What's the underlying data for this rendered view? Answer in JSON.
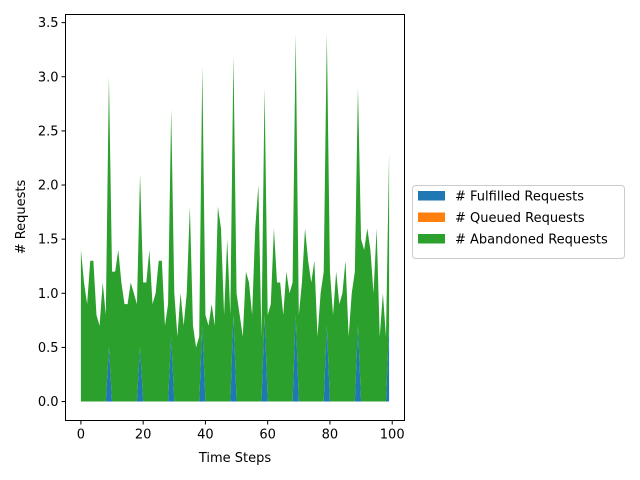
{
  "chart_data": {
    "type": "area",
    "xlabel": "Time Steps",
    "ylabel": "# Requests",
    "xlim": [
      -4.95,
      103.95
    ],
    "ylim": [
      -0.175,
      3.575
    ],
    "xticks": [
      0,
      20,
      40,
      60,
      80,
      100
    ],
    "xtick_labels": [
      "0",
      "20",
      "40",
      "60",
      "80",
      "100"
    ],
    "yticks": [
      0.0,
      0.5,
      1.0,
      1.5,
      2.0,
      2.5,
      3.0,
      3.5
    ],
    "ytick_labels": [
      "0.0",
      "0.5",
      "1.0",
      "1.5",
      "2.0",
      "2.5",
      "3.0",
      "3.5"
    ],
    "grid": false,
    "legend_position": "center-left-outside",
    "x": [
      0,
      1,
      2,
      3,
      4,
      5,
      6,
      7,
      8,
      9,
      10,
      11,
      12,
      13,
      14,
      15,
      16,
      17,
      18,
      19,
      20,
      21,
      22,
      23,
      24,
      25,
      26,
      27,
      28,
      29,
      30,
      31,
      32,
      33,
      34,
      35,
      36,
      37,
      38,
      39,
      40,
      41,
      42,
      43,
      44,
      45,
      46,
      47,
      48,
      49,
      50,
      51,
      52,
      53,
      54,
      55,
      56,
      57,
      58,
      59,
      60,
      61,
      62,
      63,
      64,
      65,
      66,
      67,
      68,
      69,
      70,
      71,
      72,
      73,
      74,
      75,
      76,
      77,
      78,
      79,
      80,
      81,
      82,
      83,
      84,
      85,
      86,
      87,
      88,
      89,
      90,
      91,
      92,
      93,
      94,
      95,
      96,
      97,
      98,
      99
    ],
    "series": [
      {
        "name": "# Fulfilled Requests",
        "color": "#1f77b4",
        "values": [
          0,
          0,
          0,
          0,
          0,
          0,
          0,
          0,
          0,
          0.5,
          0,
          0,
          0,
          0,
          0,
          0,
          0,
          0,
          0,
          0.5,
          0,
          0,
          0,
          0,
          0,
          0,
          0,
          0,
          0,
          0.6,
          0,
          0,
          0,
          0,
          0,
          0,
          0,
          0,
          0,
          0.7,
          0,
          0,
          0,
          0,
          0,
          0,
          0,
          0,
          0,
          0.8,
          0,
          0,
          0,
          0,
          0,
          0,
          0,
          0,
          0,
          0.8,
          0,
          0,
          0,
          0,
          0,
          0,
          0,
          0,
          0,
          0.8,
          0,
          0,
          0,
          0,
          0,
          0,
          0,
          0,
          0,
          0.7,
          0,
          0,
          0,
          0,
          0,
          0,
          0,
          0,
          0,
          0.7,
          0,
          0,
          0,
          0,
          0,
          0,
          0,
          0,
          0,
          0.7
        ]
      },
      {
        "name": "# Queued Requests",
        "color": "#ff7f0e",
        "values": [
          0,
          0,
          0,
          0,
          0,
          0,
          0,
          0,
          0,
          0,
          0,
          0,
          0,
          0,
          0,
          0,
          0,
          0,
          0,
          0,
          0,
          0,
          0,
          0,
          0,
          0,
          0,
          0,
          0,
          0,
          0,
          0,
          0,
          0,
          0,
          0,
          0,
          0,
          0,
          0,
          0,
          0,
          0,
          0,
          0,
          0,
          0,
          0,
          0,
          0,
          0,
          0,
          0,
          0,
          0,
          0,
          0,
          0,
          0,
          0,
          0,
          0,
          0,
          0,
          0,
          0,
          0,
          0,
          0,
          0,
          0,
          0,
          0,
          0,
          0,
          0,
          0,
          0,
          0,
          0,
          0,
          0,
          0,
          0,
          0,
          0,
          0,
          0,
          0,
          0,
          0,
          0,
          0,
          0,
          0,
          0,
          0,
          0,
          0,
          0
        ]
      },
      {
        "name": "# Abandoned Requests",
        "color": "#2ca02c",
        "values": [
          1.4,
          1.1,
          0.9,
          1.3,
          1.3,
          0.8,
          0.7,
          1.1,
          0.8,
          2.5,
          1.2,
          1.2,
          1.4,
          1.1,
          0.9,
          0.9,
          1.1,
          1.0,
          0.9,
          1.6,
          1.1,
          1.1,
          1.4,
          0.9,
          1.0,
          1.3,
          1.3,
          0.7,
          0.9,
          2.1,
          1.0,
          0.6,
          1.0,
          0.7,
          1.0,
          1.8,
          0.7,
          0.5,
          0.6,
          2.4,
          0.8,
          0.7,
          0.9,
          0.7,
          1.8,
          1.6,
          0.8,
          1.5,
          0.8,
          2.4,
          1.0,
          0.8,
          0.6,
          1.2,
          1.1,
          0.8,
          1.6,
          2.0,
          0.6,
          2.1,
          0.8,
          0.9,
          1.6,
          1.1,
          1.1,
          0.8,
          1.2,
          1.0,
          1.1,
          2.6,
          0.8,
          1.1,
          1.6,
          1.3,
          1.1,
          1.3,
          0.6,
          1.0,
          1.2,
          2.7,
          1.2,
          0.8,
          1.2,
          0.9,
          1.0,
          1.3,
          0.6,
          1.0,
          1.2,
          2.2,
          1.5,
          1.4,
          1.6,
          1.4,
          1.0,
          1.6,
          0.6,
          1.0,
          0.6,
          1.6
        ]
      }
    ]
  }
}
